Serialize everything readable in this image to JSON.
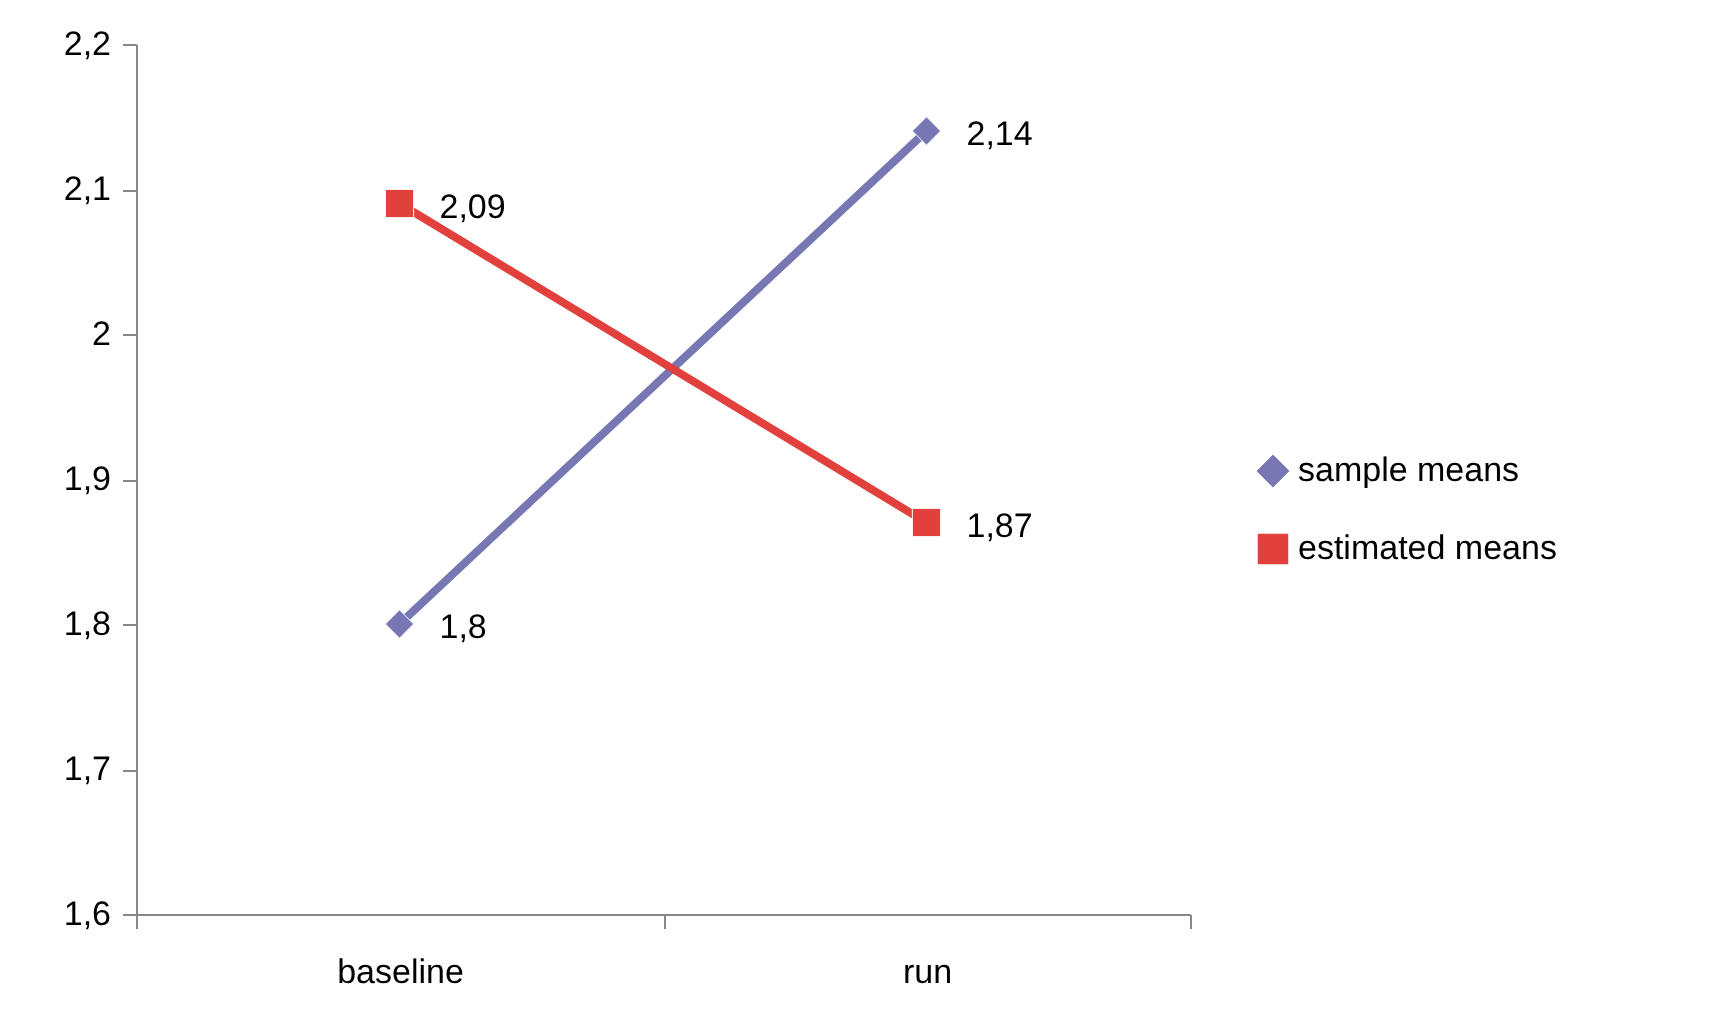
{
  "chart_data": {
    "type": "line",
    "categories": [
      "baseline",
      "run"
    ],
    "series": [
      {
        "name": "sample means",
        "color": "#7777b4",
        "marker": "diamond",
        "values": [
          1.8,
          2.14
        ],
        "value_labels": [
          "1,8",
          "2,14"
        ]
      },
      {
        "name": "estimated means",
        "color": "#e2403c",
        "marker": "square",
        "values": [
          2.09,
          1.87
        ],
        "value_labels": [
          "2,09",
          "1,87"
        ]
      }
    ],
    "ylim": [
      1.6,
      2.2
    ],
    "yticks": [
      {
        "value": 1.6,
        "label": "1,6"
      },
      {
        "value": 1.7,
        "label": "1,7"
      },
      {
        "value": 1.8,
        "label": "1,8"
      },
      {
        "value": 1.9,
        "label": "1,9"
      },
      {
        "value": 2,
        "label": "2"
      },
      {
        "value": 2.1,
        "label": "2,1"
      },
      {
        "value": 2.2,
        "label": "2,2"
      }
    ],
    "grid": false,
    "legend": "right"
  }
}
